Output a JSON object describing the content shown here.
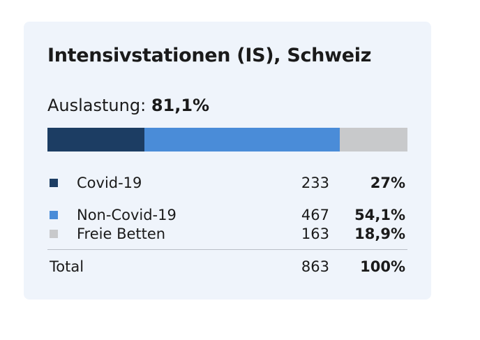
{
  "card": {
    "title": "Intensivstationen (IS), Schweiz",
    "utilization_label": "Auslastung:",
    "utilization_value": "81,1%"
  },
  "colors": {
    "covid": "#1c3d63",
    "non_covid": "#4a8cd8",
    "free": "#c8c9cb",
    "card_background": "#eff4fb"
  },
  "rows": [
    {
      "label": "Covid-19",
      "count": "233",
      "percent": "27%"
    },
    {
      "label": "Non-Covid-19",
      "count": "467",
      "percent": "54,1%"
    },
    {
      "label": "Freie Betten",
      "count": "163",
      "percent": "18,9%"
    }
  ],
  "total": {
    "label": "Total",
    "count": "863",
    "percent": "100%"
  },
  "chart_data": {
    "type": "bar",
    "stacked": true,
    "orientation": "horizontal",
    "title": "Intensivstationen (IS), Schweiz",
    "categories": [
      "Covid-19",
      "Non-Covid-19",
      "Freie Betten"
    ],
    "values": [
      233,
      467,
      163
    ],
    "percent": [
      27,
      54.1,
      18.9
    ],
    "total": 863,
    "colors": [
      "#1c3d63",
      "#4a8cd8",
      "#c8c9cb"
    ],
    "grid": false
  }
}
